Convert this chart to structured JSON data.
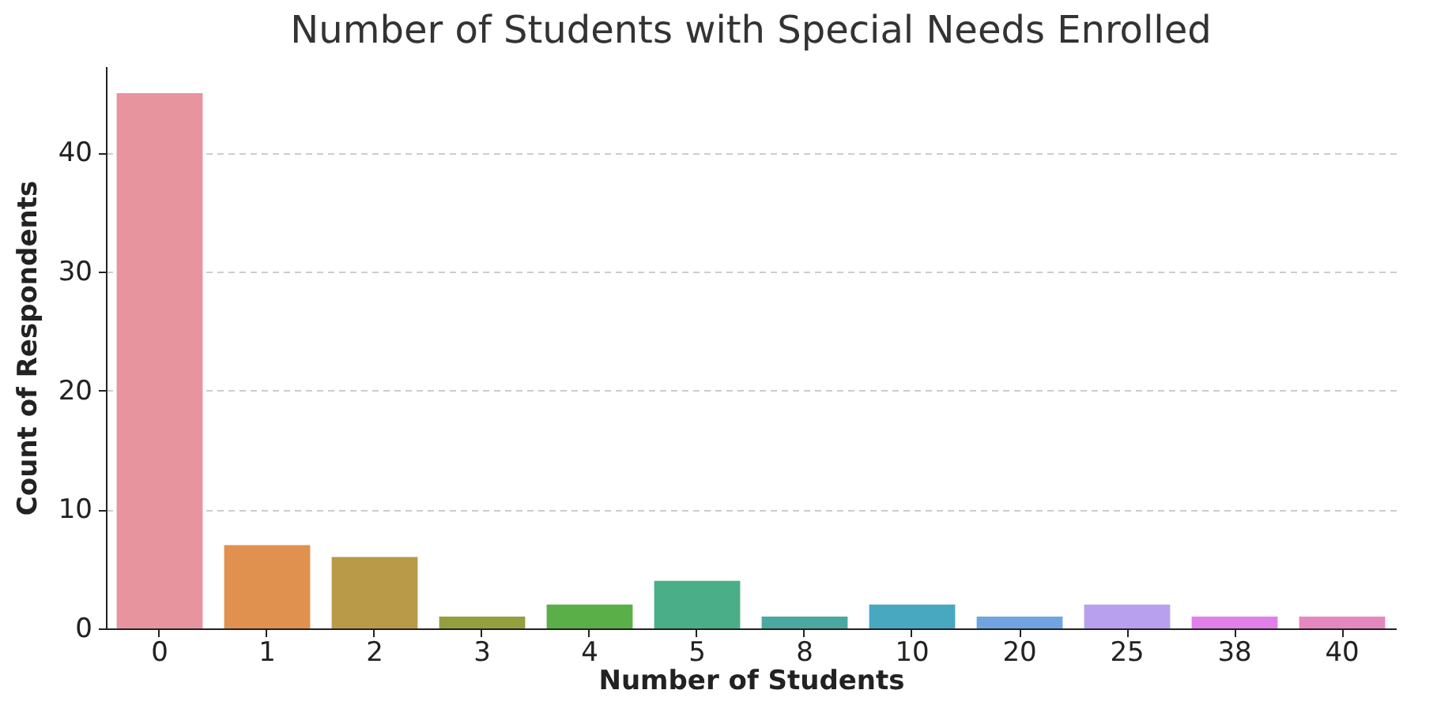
{
  "chart_data": {
    "type": "bar",
    "title": "Number of Students with Special Needs Enrolled",
    "xlabel": "Number of Students",
    "ylabel": "Count of Respondents",
    "categories": [
      "0",
      "1",
      "2",
      "3",
      "4",
      "5",
      "8",
      "10",
      "20",
      "25",
      "38",
      "40"
    ],
    "values": [
      45,
      7,
      6,
      1,
      2,
      4,
      1,
      2,
      1,
      2,
      1,
      1
    ],
    "colors": [
      "#e8949f",
      "#e0904f",
      "#b89a48",
      "#969f3e",
      "#5aaf48",
      "#4aaf88",
      "#4aa89e",
      "#48a8c0",
      "#70a4e0",
      "#b8a0ee",
      "#e080e8",
      "#e688c0"
    ],
    "ylim": [
      0,
      47.25
    ],
    "yticks": [
      0,
      10,
      20,
      30,
      40
    ],
    "grid": "y",
    "legend": false
  }
}
